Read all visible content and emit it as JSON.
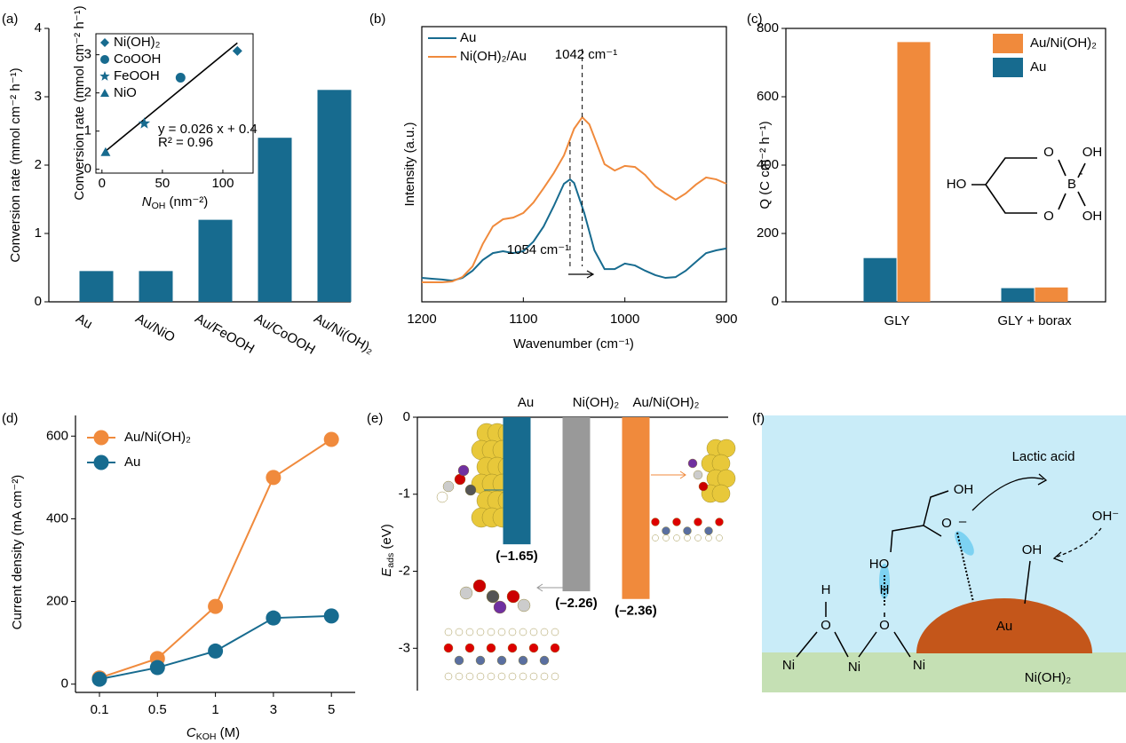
{
  "chart_data": [
    {
      "type": "bar",
      "label": "(a)",
      "categories": [
        "Au",
        "Au/NiO",
        "Au/FeOOH",
        "Au/CoOOH",
        "Au/Ni(OH)₂"
      ],
      "values": [
        0.45,
        0.45,
        1.2,
        2.4,
        3.1
      ],
      "color": "#176b8f",
      "ylim": [
        0,
        4
      ],
      "yticks": [
        0,
        1,
        2,
        3,
        4
      ],
      "ylabel": "Conversion rate (mmol cm⁻² h⁻¹)",
      "inset": {
        "type": "scatter",
        "xlim": [
          -5,
          125
        ],
        "ylim": [
          -0.1,
          3.55
        ],
        "xticks": [
          0,
          50,
          100
        ],
        "yticks": [
          0,
          1,
          2,
          3
        ],
        "xlabel": {
          "main": "N",
          "sub": "OH",
          "rest": " (nm⁻²)"
        },
        "ylabel": "Conversion rate (mmol cm⁻² h⁻¹)",
        "color": "#176b8f",
        "series": [
          {
            "name": "Ni(OH)₂",
            "marker": "diamond",
            "x": [
              112
            ],
            "values": [
              3.1
            ]
          },
          {
            "name": "CoOOH",
            "marker": "circle",
            "x": [
              65
            ],
            "values": [
              2.4
            ]
          },
          {
            "name": "FeOOH",
            "marker": "star",
            "x": [
              35
            ],
            "values": [
              1.2
            ]
          },
          {
            "name": "NiO",
            "marker": "triangle",
            "x": [
              3
            ],
            "values": [
              0.45
            ]
          }
        ],
        "fit": {
          "x": [
            2,
            112
          ],
          "values": [
            0.45,
            3.31
          ],
          "color": "#000000"
        },
        "annotations": [
          "y = 0.026 x + 0.4",
          "R² = 0.96"
        ]
      }
    },
    {
      "type": "line",
      "label": "(b)",
      "xlim": [
        1200,
        900
      ],
      "xticks": [
        1200,
        1100,
        1000,
        900
      ],
      "ylim": [
        0,
        1
      ],
      "xlabel": "Wavenumber (cm⁻¹)",
      "ylabel": "Intensity (a.u.)",
      "series": [
        {
          "name": "Au",
          "color": "#176b8f",
          "x": [
            1200,
            1190,
            1180,
            1170,
            1160,
            1150,
            1140,
            1130,
            1120,
            1110,
            1100,
            1090,
            1080,
            1070,
            1060,
            1054,
            1050,
            1040,
            1030,
            1020,
            1010,
            1000,
            990,
            980,
            970,
            960,
            950,
            940,
            930,
            920,
            910,
            900
          ],
          "values": [
            0.087,
            0.084,
            0.081,
            0.077,
            0.087,
            0.113,
            0.152,
            0.177,
            0.184,
            0.177,
            0.184,
            0.219,
            0.274,
            0.348,
            0.429,
            0.445,
            0.432,
            0.323,
            0.187,
            0.119,
            0.119,
            0.139,
            0.132,
            0.113,
            0.097,
            0.087,
            0.09,
            0.113,
            0.145,
            0.177,
            0.187,
            0.194
          ]
        },
        {
          "name": "Ni(OH)₂/Au",
          "color": "#f08a3c",
          "x": [
            1200,
            1190,
            1180,
            1170,
            1160,
            1150,
            1140,
            1130,
            1120,
            1110,
            1100,
            1090,
            1080,
            1070,
            1060,
            1050,
            1042,
            1035,
            1030,
            1020,
            1010,
            1000,
            990,
            980,
            970,
            960,
            950,
            940,
            930,
            920,
            910,
            900
          ],
          "values": [
            0.071,
            0.071,
            0.071,
            0.074,
            0.09,
            0.129,
            0.21,
            0.274,
            0.3,
            0.306,
            0.323,
            0.361,
            0.413,
            0.468,
            0.532,
            0.629,
            0.671,
            0.645,
            0.597,
            0.5,
            0.477,
            0.494,
            0.49,
            0.461,
            0.419,
            0.394,
            0.371,
            0.394,
            0.426,
            0.452,
            0.445,
            0.429
          ]
        }
      ],
      "markers": [
        {
          "x": 1042,
          "label": "1042 cm⁻¹"
        },
        {
          "x": 1054,
          "label": "1054 cm⁻¹"
        }
      ]
    },
    {
      "type": "bar",
      "label": "(c)",
      "categories": [
        "GLY",
        "GLY + borax"
      ],
      "series": [
        {
          "name": "Au/Ni(OH)₂",
          "color": "#f08a3c",
          "values": [
            760,
            42
          ]
        },
        {
          "name": "Au",
          "color": "#176b8f",
          "values": [
            128,
            40
          ]
        }
      ],
      "ylim": [
        0,
        800
      ],
      "yticks": [
        0,
        200,
        400,
        600,
        800
      ],
      "ylabel": "Q (C cm⁻² h⁻¹)",
      "structure": [
        "HO",
        "O",
        "O",
        "B",
        "-",
        "OH",
        "OH"
      ]
    },
    {
      "type": "line",
      "label": "(d)",
      "categories": [
        "0.1",
        "0.5",
        "1",
        "3",
        "5"
      ],
      "series": [
        {
          "name": "Au/Ni(OH)₂",
          "color": "#f08a3c",
          "values": [
            15,
            62,
            188,
            500,
            592
          ]
        },
        {
          "name": "Au",
          "color": "#176b8f",
          "values": [
            12,
            40,
            80,
            160,
            165
          ]
        }
      ],
      "ylim": [
        -20,
        650
      ],
      "yticks": [
        0,
        200,
        400,
        600
      ],
      "xlabel": {
        "main": "C",
        "sub": "KOH",
        "rest": " (M)"
      },
      "ylabel": "Current density (mA cm⁻²)"
    },
    {
      "type": "bar",
      "label": "(e)",
      "categories": [
        "Au",
        "Ni(OH)₂",
        "Au/Ni(OH)₂"
      ],
      "values": [
        -1.65,
        -2.26,
        -2.36
      ],
      "value_labels": [
        "(–1.65)",
        "(–2.26)",
        "(–2.36)"
      ],
      "colors": [
        "#176b8f",
        "#999999",
        "#f08a3c"
      ],
      "ylim": [
        -3.55,
        0
      ],
      "yticks": [
        0,
        -1,
        -2,
        -3
      ],
      "ylabel": {
        "main": "E",
        "sub": "ads",
        "rest": " (eV)"
      }
    }
  ],
  "diagram": {
    "label": "(f)",
    "labels": {
      "lactic": "Lactic acid",
      "oh_top": "OH",
      "ho": "HO",
      "o_minus": "O",
      "minus": "–",
      "oh_au": "OH",
      "oh_ion": "OH⁻",
      "au": "Au",
      "support": "Ni(OH)₂",
      "h1": "H",
      "h2": "H",
      "o1": "O",
      "o2": "O",
      "ni1": "Ni",
      "ni2": "Ni",
      "ni3": "Ni"
    }
  }
}
